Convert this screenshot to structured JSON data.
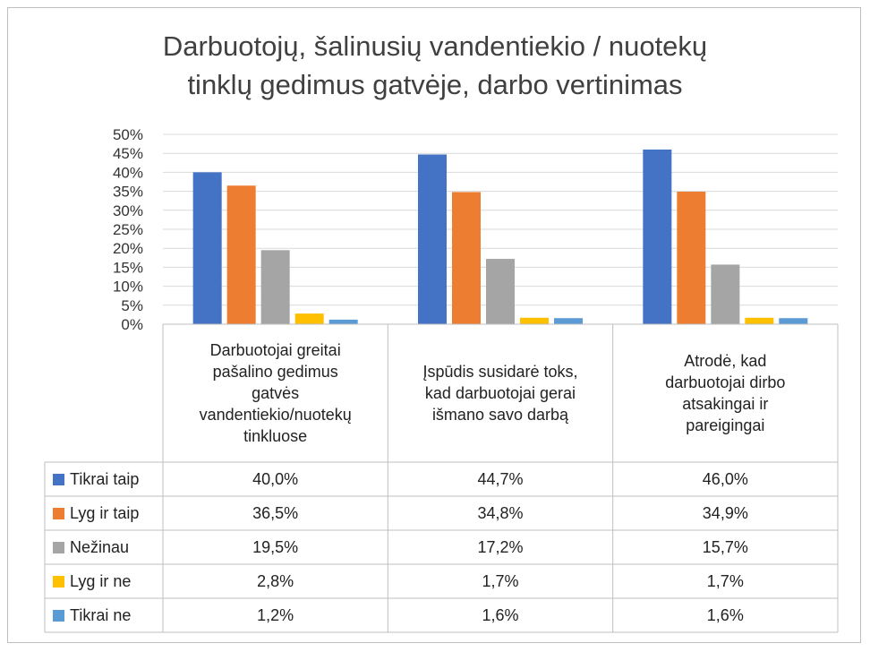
{
  "chart_data": {
    "type": "bar",
    "title_lines": [
      "Darbuotojų, šalinusių vandentiekio / nuotekų",
      "tinklų gedimus gatvėje, darbo vertinimas"
    ],
    "categories": [
      [
        "Darbuotojai greitai",
        "pašalino gedimus",
        "gatvės",
        "vandentiekio/nuotekų",
        "tinkluose"
      ],
      [
        "Įspūdis susidarė toks,",
        "kad darbuotojai gerai",
        "išmano savo darbą"
      ],
      [
        "Atrodė, kad",
        "darbuotojai dirbo",
        "atsakingai ir",
        "pareigingai"
      ]
    ],
    "ylim": [
      0,
      50
    ],
    "yticks": [
      "0%",
      "5%",
      "10%",
      "15%",
      "20%",
      "25%",
      "30%",
      "35%",
      "40%",
      "45%",
      "50%"
    ],
    "ytick_values": [
      0,
      5,
      10,
      15,
      20,
      25,
      30,
      35,
      40,
      45,
      50
    ],
    "grid": true,
    "legend": "table",
    "series": [
      {
        "name": "Tikrai taip",
        "color": "#4472C4",
        "values": [
          40.0,
          44.7,
          46.0
        ],
        "labels": [
          "40,0%",
          "44,7%",
          "46,0%"
        ]
      },
      {
        "name": "Lyg ir taip",
        "color": "#ED7D31",
        "values": [
          36.5,
          34.8,
          34.9
        ],
        "labels": [
          "36,5%",
          "34,8%",
          "34,9%"
        ]
      },
      {
        "name": "Nežinau",
        "color": "#A5A5A5",
        "values": [
          19.5,
          17.2,
          15.7
        ],
        "labels": [
          "19,5%",
          "17,2%",
          "15,7%"
        ]
      },
      {
        "name": "Lyg ir ne",
        "color": "#FFC000",
        "values": [
          2.8,
          1.7,
          1.7
        ],
        "labels": [
          "2,8%",
          "1,7%",
          "1,7%"
        ]
      },
      {
        "name": "Tikrai ne",
        "color": "#5B9BD5",
        "values": [
          1.2,
          1.6,
          1.6
        ],
        "labels": [
          "1,2%",
          "1,6%",
          "1,6%"
        ]
      }
    ]
  }
}
